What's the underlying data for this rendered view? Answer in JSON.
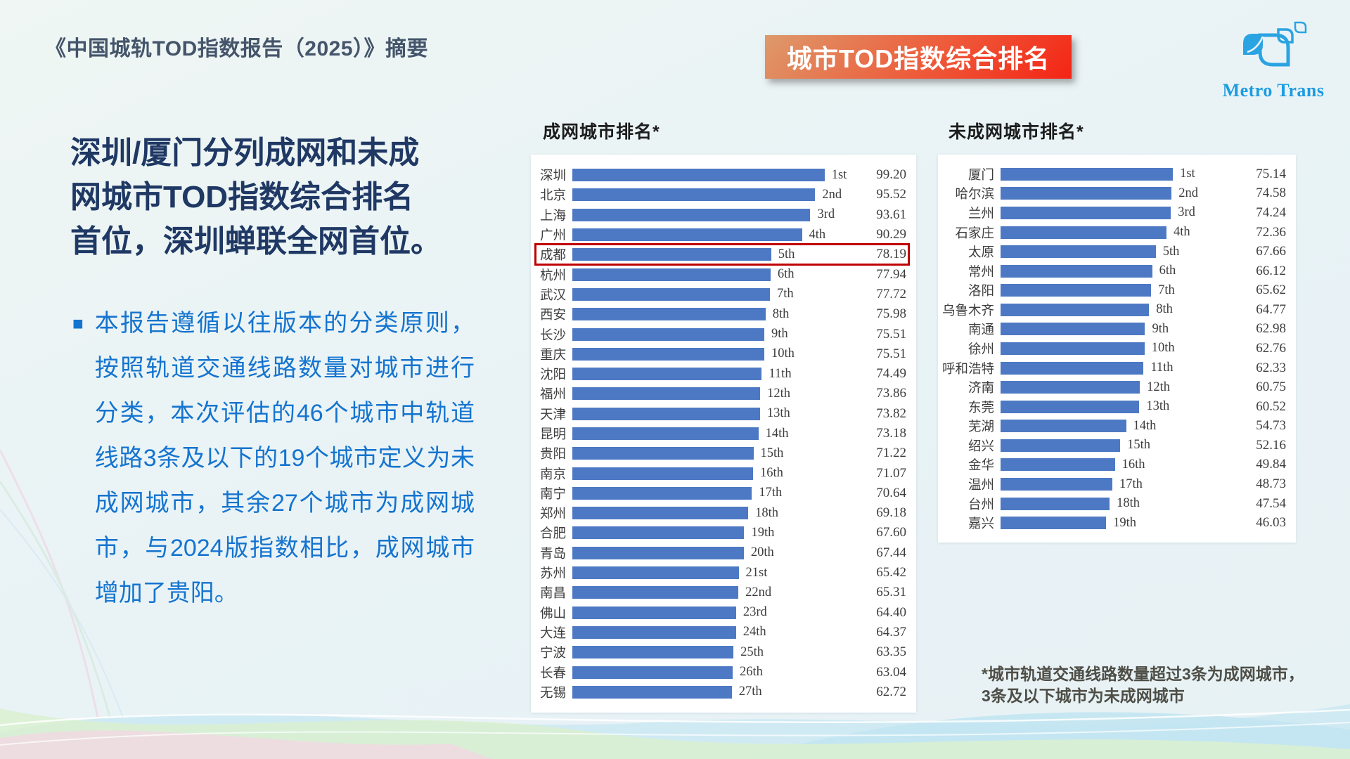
{
  "header": {
    "report_title": "《中国城轨TOD指数报告（2025）》摘要",
    "banner": "城市TOD指数综合排名",
    "logo_text": "Metro Trans"
  },
  "main": {
    "headline_lines": [
      "深圳/厦门分列成网和未成",
      "网城市TOD指数综合排名",
      "首位，深圳蝉联全网首位。"
    ],
    "bullet": {
      "marker": "■",
      "text": "本报告遵循以往版本的分类原则，按照轨道交通线路数量对城市进行分类，本次评估的46个城市中轨道线路3条及以下的19个城市定义为未成网城市，其余27个城市为成网城市，与2024版指数相比，成网城市增加了贵阳。"
    }
  },
  "footnote": {
    "line1": "*城市轨道交通线路数量超过3条为成网城市，",
    "line2": "3条及以下城市为未成网城市"
  },
  "colors": {
    "bar": "#4d79c4",
    "highlight_box": "#c00000",
    "banner_gradient_start": "#dd9a6b",
    "banner_gradient_end": "#f42414",
    "headline_navy": "#1f3864",
    "body_blue": "#1574cf",
    "logo_blue": "#1d9ce0",
    "title_slate": "#44546a"
  },
  "chart_data": [
    {
      "type": "bar",
      "title": "成网城市排名*",
      "orientation": "horizontal",
      "xlim": [
        0,
        112
      ],
      "grid": false,
      "legend": "none",
      "highlight_category": "成都",
      "categories": [
        "深圳",
        "北京",
        "上海",
        "广州",
        "成都",
        "杭州",
        "武汉",
        "西安",
        "长沙",
        "重庆",
        "沈阳",
        "福州",
        "天津",
        "昆明",
        "贵阳",
        "南京",
        "南宁",
        "郑州",
        "合肥",
        "青岛",
        "苏州",
        "南昌",
        "佛山",
        "大连",
        "宁波",
        "长春",
        "无锡"
      ],
      "ranks": [
        "1st",
        "2nd",
        "3rd",
        "4th",
        "5th",
        "6th",
        "7th",
        "8th",
        "9th",
        "10th",
        "11th",
        "12th",
        "13th",
        "14th",
        "15th",
        "16th",
        "17th",
        "18th",
        "19th",
        "20th",
        "21st",
        "22nd",
        "23rd",
        "24th",
        "25th",
        "26th",
        "27th"
      ],
      "values": [
        99.2,
        95.52,
        93.61,
        90.29,
        78.19,
        77.94,
        77.72,
        75.98,
        75.51,
        75.51,
        74.49,
        73.86,
        73.82,
        73.18,
        71.22,
        71.07,
        70.64,
        69.18,
        67.6,
        67.44,
        65.42,
        65.31,
        64.4,
        64.37,
        63.35,
        63.04,
        62.72
      ]
    },
    {
      "type": "bar",
      "title": "未成网城市排名*",
      "orientation": "horizontal",
      "xlim": [
        0,
        103
      ],
      "grid": false,
      "legend": "none",
      "highlight_category": null,
      "categories": [
        "厦门",
        "哈尔滨",
        "兰州",
        "石家庄",
        "太原",
        "常州",
        "洛阳",
        "乌鲁木齐",
        "南通",
        "徐州",
        "呼和浩特",
        "济南",
        "东莞",
        "芜湖",
        "绍兴",
        "金华",
        "温州",
        "台州",
        "嘉兴"
      ],
      "ranks": [
        "1st",
        "2nd",
        "3rd",
        "4th",
        "5th",
        "6th",
        "7th",
        "8th",
        "9th",
        "10th",
        "11th",
        "12th",
        "13th",
        "14th",
        "15th",
        "16th",
        "17th",
        "18th",
        "19th"
      ],
      "values": [
        75.14,
        74.58,
        74.24,
        72.36,
        67.66,
        66.12,
        65.62,
        64.77,
        62.98,
        62.76,
        62.33,
        60.75,
        60.52,
        54.73,
        52.16,
        49.84,
        48.73,
        47.54,
        46.03
      ]
    }
  ]
}
